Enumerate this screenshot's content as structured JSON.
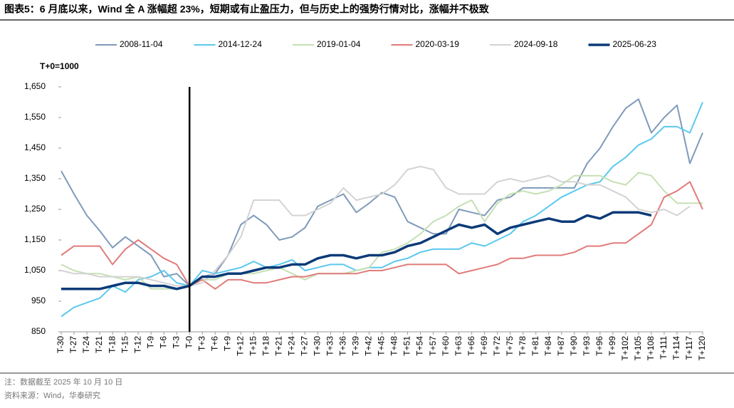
{
  "chart_data": {
    "type": "line",
    "title": "图表5：6 月底以来，Wind 全 A 涨幅超 23%，短期或有止盈压力，但与历史上的强势行情对比，涨幅并不极致",
    "y_label": "T+0=1000",
    "notes": [
      "注：数据截至 2025 年 10 月 10 日",
      "资料来源：Wind，华泰研究"
    ],
    "x": [
      -30,
      -27,
      -24,
      -21,
      -18,
      -15,
      -12,
      -9,
      -6,
      -3,
      0,
      3,
      6,
      9,
      12,
      15,
      18,
      21,
      24,
      27,
      30,
      33,
      36,
      39,
      42,
      45,
      48,
      51,
      54,
      57,
      60,
      63,
      66,
      69,
      72,
      75,
      78,
      81,
      84,
      87,
      90,
      93,
      96,
      99,
      102,
      105,
      108,
      111,
      114,
      117,
      120
    ],
    "xlim": [
      -30,
      120
    ],
    "xticks": [
      {
        "value": -30,
        "label": "T-30"
      },
      {
        "value": -27,
        "label": "T-27"
      },
      {
        "value": -24,
        "label": "T-24"
      },
      {
        "value": -21,
        "label": "T-21"
      },
      {
        "value": -18,
        "label": "T-18"
      },
      {
        "value": -15,
        "label": "T-15"
      },
      {
        "value": -12,
        "label": "T-12"
      },
      {
        "value": -9,
        "label": "T-9"
      },
      {
        "value": -6,
        "label": "T-6"
      },
      {
        "value": -3,
        "label": "T-3"
      },
      {
        "value": 0,
        "label": "T-0"
      },
      {
        "value": 3,
        "label": "T+3"
      },
      {
        "value": 6,
        "label": "T+6"
      },
      {
        "value": 9,
        "label": "T+9"
      },
      {
        "value": 12,
        "label": "T+12"
      },
      {
        "value": 15,
        "label": "T+15"
      },
      {
        "value": 18,
        "label": "T+18"
      },
      {
        "value": 21,
        "label": "T+21"
      },
      {
        "value": 24,
        "label": "T+24"
      },
      {
        "value": 27,
        "label": "T+27"
      },
      {
        "value": 30,
        "label": "T+30"
      },
      {
        "value": 33,
        "label": "T+33"
      },
      {
        "value": 36,
        "label": "T+36"
      },
      {
        "value": 39,
        "label": "T+39"
      },
      {
        "value": 42,
        "label": "T+42"
      },
      {
        "value": 45,
        "label": "T+45"
      },
      {
        "value": 48,
        "label": "T+48"
      },
      {
        "value": 51,
        "label": "T+51"
      },
      {
        "value": 54,
        "label": "T+54"
      },
      {
        "value": 57,
        "label": "T+57"
      },
      {
        "value": 60,
        "label": "T+60"
      },
      {
        "value": 63,
        "label": "T+63"
      },
      {
        "value": 66,
        "label": "T+66"
      },
      {
        "value": 69,
        "label": "T+69"
      },
      {
        "value": 72,
        "label": "T+72"
      },
      {
        "value": 75,
        "label": "T+75"
      },
      {
        "value": 78,
        "label": "T+78"
      },
      {
        "value": 81,
        "label": "T+81"
      },
      {
        "value": 84,
        "label": "T+84"
      },
      {
        "value": 87,
        "label": "T+87"
      },
      {
        "value": 90,
        "label": "T+90"
      },
      {
        "value": 93,
        "label": "T+93"
      },
      {
        "value": 96,
        "label": "T+96"
      },
      {
        "value": 99,
        "label": "T+99"
      },
      {
        "value": 102,
        "label": "T+102"
      },
      {
        "value": 105,
        "label": "T+105"
      },
      {
        "value": 108,
        "label": "T+108"
      },
      {
        "value": 111,
        "label": "T+111"
      },
      {
        "value": 114,
        "label": "T+114"
      },
      {
        "value": 117,
        "label": "T+117"
      },
      {
        "value": 120,
        "label": "T+120"
      }
    ],
    "ylim": [
      850,
      1650
    ],
    "yticks": [
      850,
      950,
      {
        "value": 1050,
        "label": "1,050"
      },
      {
        "value": 1150,
        "label": "1,150"
      },
      {
        "value": 1250,
        "label": "1,250"
      },
      {
        "value": 1350,
        "label": "1,350"
      },
      {
        "value": 1450,
        "label": "1,450"
      },
      {
        "value": 1550,
        "label": "1,550"
      },
      {
        "value": 1650,
        "label": "1,650"
      }
    ],
    "reference_x": 0,
    "grid": false,
    "legend": "top",
    "series": [
      {
        "name": "2008-11-04",
        "color": "#7f9ab9",
        "width": 2,
        "values": [
          1375,
          1300,
          1230,
          1180,
          1125,
          1160,
          1130,
          1100,
          1030,
          1040,
          1000,
          1030,
          1040,
          1100,
          1200,
          1230,
          1200,
          1150,
          1160,
          1190,
          1260,
          1280,
          1300,
          1240,
          1270,
          1305,
          1290,
          1210,
          1190,
          1170,
          1170,
          1250,
          1240,
          1230,
          1280,
          1290,
          1320,
          1320,
          1320,
          1320,
          1320,
          1400,
          1450,
          1520,
          1580,
          1610,
          1500,
          1550,
          1590,
          1400,
          1500
        ]
      },
      {
        "name": "2014-12-24",
        "color": "#5bc8ee",
        "width": 2,
        "values": [
          900,
          930,
          945,
          960,
          1000,
          980,
          1020,
          1030,
          1050,
          1010,
          1000,
          1050,
          1040,
          1050,
          1060,
          1080,
          1060,
          1070,
          1085,
          1050,
          1060,
          1070,
          1070,
          1050,
          1060,
          1060,
          1080,
          1090,
          1110,
          1120,
          1120,
          1120,
          1140,
          1130,
          1150,
          1170,
          1210,
          1230,
          1260,
          1290,
          1310,
          1330,
          1340,
          1390,
          1420,
          1460,
          1480,
          1520,
          1520,
          1500,
          1600
        ]
      },
      {
        "name": "2019-01-04",
        "color": "#c5e0b4",
        "width": 2,
        "values": [
          1070,
          1050,
          1040,
          1040,
          1030,
          1020,
          1030,
          990,
          990,
          990,
          1000,
          1020,
          1020,
          1040,
          1040,
          1040,
          1050,
          1060,
          1040,
          1020,
          1040,
          1040,
          1040,
          1050,
          1060,
          1110,
          1120,
          1140,
          1170,
          1210,
          1230,
          1260,
          1280,
          1210,
          1270,
          1300,
          1310,
          1300,
          1310,
          1330,
          1360,
          1360,
          1360,
          1340,
          1330,
          1370,
          1360,
          1310,
          1270,
          1270,
          1270
        ]
      },
      {
        "name": "2020-03-19",
        "color": "#e07b79",
        "width": 2,
        "values": [
          1100,
          1130,
          1130,
          1130,
          1070,
          1120,
          1150,
          1120,
          1090,
          1070,
          1000,
          1020,
          990,
          1020,
          1020,
          1010,
          1010,
          1020,
          1030,
          1030,
          1040,
          1040,
          1040,
          1040,
          1050,
          1050,
          1060,
          1070,
          1070,
          1070,
          1070,
          1040,
          1050,
          1060,
          1070,
          1090,
          1090,
          1100,
          1100,
          1100,
          1110,
          1130,
          1130,
          1140,
          1140,
          1170,
          1200,
          1290,
          1310,
          1340,
          1250
        ]
      },
      {
        "name": "2024-09-18",
        "color": "#d3d3d3",
        "width": 2,
        "values": [
          1050,
          1040,
          1040,
          1030,
          1030,
          1030,
          1030,
          1020,
          1010,
          1000,
          1000,
          1010,
          1050,
          1100,
          1160,
          1280,
          1280,
          1280,
          1230,
          1230,
          1250,
          1270,
          1320,
          1280,
          1290,
          1300,
          1330,
          1380,
          1390,
          1380,
          1320,
          1300,
          1300,
          1300,
          1340,
          1350,
          1340,
          1350,
          1360,
          1340,
          1340,
          1330,
          1330,
          1310,
          1290,
          1250,
          1240,
          1250,
          1230,
          1260,
          null
        ]
      },
      {
        "name": "2025-06-23",
        "color": "#0b3a78",
        "width": 3.5,
        "values": [
          990,
          990,
          990,
          990,
          1000,
          1010,
          1010,
          1000,
          1000,
          990,
          1000,
          1030,
          1030,
          1040,
          1040,
          1050,
          1060,
          1060,
          1070,
          1070,
          1090,
          1100,
          1100,
          1090,
          1100,
          1100,
          1110,
          1130,
          1140,
          1160,
          1180,
          1200,
          1190,
          1200,
          1170,
          1190,
          1200,
          1210,
          1220,
          1210,
          1210,
          1230,
          1220,
          1240,
          1240,
          1240,
          1230,
          null,
          null,
          null,
          null
        ]
      }
    ]
  }
}
